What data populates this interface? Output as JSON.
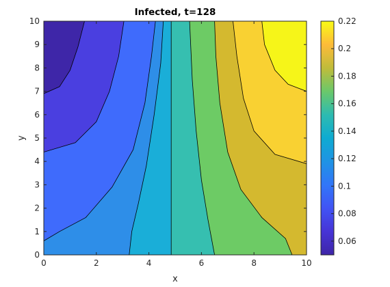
{
  "chart_data": {
    "type": "heatmap",
    "subtype": "filled-contour",
    "title": "Infected, t=128",
    "xlabel": "x",
    "ylabel": "y",
    "xlim": [
      0,
      10
    ],
    "ylim": [
      0,
      10
    ],
    "xticks": [
      "0",
      "2",
      "4",
      "6",
      "8",
      "10"
    ],
    "yticks": [
      "0",
      "1",
      "2",
      "3",
      "4",
      "5",
      "6",
      "7",
      "8",
      "9",
      "10"
    ],
    "colorbar": {
      "range": [
        0.05,
        0.22
      ],
      "ticks": [
        "0.06",
        "0.08",
        "0.1",
        "0.12",
        "0.14",
        "0.16",
        "0.18",
        "0.2",
        "0.22"
      ],
      "colormap": "parula"
    },
    "levels": [
      {
        "lower": 0.05,
        "upper": 0.07,
        "color": "#3e26a8"
      },
      {
        "lower": 0.07,
        "upper": 0.09,
        "color": "#4a3fe0"
      },
      {
        "lower": 0.09,
        "upper": 0.11,
        "color": "#3f6bfc"
      },
      {
        "lower": 0.11,
        "upper": 0.13,
        "color": "#2e8ee8"
      },
      {
        "lower": 0.13,
        "upper": 0.15,
        "color": "#1aaed8"
      },
      {
        "lower": 0.15,
        "upper": 0.17,
        "color": "#36bfb0"
      },
      {
        "lower": 0.17,
        "upper": 0.19,
        "color": "#6dcb65"
      },
      {
        "lower": 0.19,
        "upper": 0.21,
        "color": "#d4b92f"
      },
      {
        "lower": 0.21,
        "upper": 0.22,
        "color": "#f9d132"
      },
      {
        "lower": 0.22,
        "upper": 0.23,
        "color": "#f6f519"
      }
    ],
    "contour_lines": [
      {
        "level": 0.07,
        "points": [
          [
            0,
            6.9
          ],
          [
            0.6,
            7.2
          ],
          [
            1.0,
            7.9
          ],
          [
            1.3,
            8.9
          ],
          [
            1.55,
            10
          ]
        ]
      },
      {
        "level": 0.09,
        "points": [
          [
            0,
            4.4
          ],
          [
            1.2,
            4.8
          ],
          [
            2.0,
            5.7
          ],
          [
            2.5,
            7.0
          ],
          [
            2.85,
            8.5
          ],
          [
            3.05,
            10
          ]
        ]
      },
      {
        "level": 0.11,
        "points": [
          [
            0,
            0.6
          ],
          [
            0.6,
            1.0
          ],
          [
            1.6,
            1.6
          ],
          [
            2.6,
            2.9
          ],
          [
            3.4,
            4.5
          ],
          [
            3.85,
            6.5
          ],
          [
            4.1,
            8.5
          ],
          [
            4.25,
            10
          ]
        ]
      },
      {
        "level": 0.13,
        "points": [
          [
            3.25,
            0
          ],
          [
            3.35,
            1.0
          ],
          [
            3.6,
            2.2
          ],
          [
            3.9,
            3.8
          ],
          [
            4.2,
            6.0
          ],
          [
            4.45,
            8.2
          ],
          [
            4.55,
            10
          ]
        ]
      },
      {
        "level": 0.15,
        "points": [
          [
            4.85,
            0
          ],
          [
            4.85,
            3
          ],
          [
            4.85,
            7
          ],
          [
            4.85,
            10
          ]
        ]
      },
      {
        "level": 0.17,
        "points": [
          [
            6.5,
            0
          ],
          [
            6.25,
            1.5
          ],
          [
            6.0,
            3.2
          ],
          [
            5.8,
            5.3
          ],
          [
            5.65,
            7.5
          ],
          [
            5.55,
            10
          ]
        ]
      },
      {
        "level": 0.19,
        "points": [
          [
            9.45,
            0
          ],
          [
            9.2,
            0.7
          ],
          [
            8.3,
            1.6
          ],
          [
            7.5,
            2.8
          ],
          [
            7.0,
            4.4
          ],
          [
            6.7,
            6.5
          ],
          [
            6.55,
            8.5
          ],
          [
            6.5,
            10
          ]
        ]
      },
      {
        "level": 0.21,
        "points": [
          [
            10,
            3.9
          ],
          [
            8.8,
            4.3
          ],
          [
            8.0,
            5.3
          ],
          [
            7.6,
            6.7
          ],
          [
            7.35,
            8.5
          ],
          [
            7.2,
            10
          ]
        ]
      },
      {
        "level": 0.22,
        "points": [
          [
            10,
            7.0
          ],
          [
            9.3,
            7.3
          ],
          [
            8.8,
            7.9
          ],
          [
            8.4,
            9.0
          ],
          [
            8.3,
            10
          ]
        ]
      }
    ]
  }
}
